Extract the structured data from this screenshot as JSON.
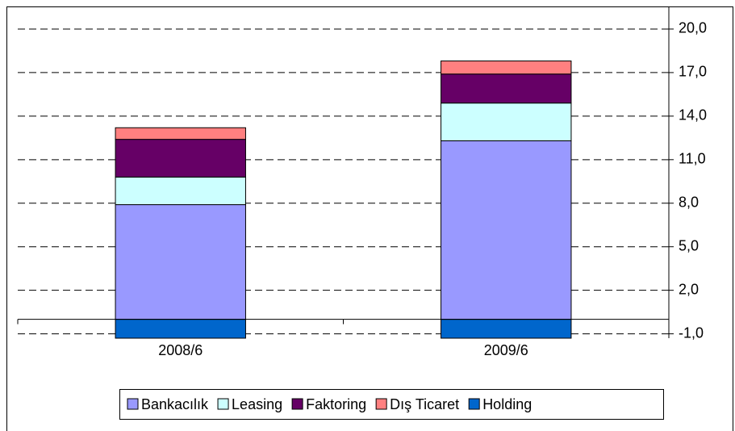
{
  "chart_data": {
    "type": "bar",
    "stacked": true,
    "categories": [
      "2008/6",
      "2009/6"
    ],
    "series": [
      {
        "name": "Bankacılık",
        "color": "#9999ff",
        "values": [
          7.9,
          12.3
        ]
      },
      {
        "name": "Leasing",
        "color": "#ccffff",
        "values": [
          1.9,
          2.6
        ]
      },
      {
        "name": "Faktoring",
        "color": "#660066",
        "values": [
          2.6,
          2.0
        ]
      },
      {
        "name": "Dış Ticaret",
        "color": "#ff8080",
        "values": [
          0.8,
          0.9
        ]
      },
      {
        "name": "Holding",
        "color": "#0066cc",
        "values": [
          -1.3,
          -1.3
        ]
      }
    ],
    "ylim": [
      -1.3,
      21.5
    ],
    "yticks": [
      {
        "value": -1,
        "label": "-1,0"
      },
      {
        "value": 2,
        "label": "2,0"
      },
      {
        "value": 5,
        "label": "5,0"
      },
      {
        "value": 8,
        "label": "8,0"
      },
      {
        "value": 11,
        "label": "11,0"
      },
      {
        "value": 14,
        "label": "14,0"
      },
      {
        "value": 17,
        "label": "17,0"
      },
      {
        "value": 20,
        "label": "20,0"
      }
    ],
    "grid": true,
    "legend": "bottom"
  }
}
